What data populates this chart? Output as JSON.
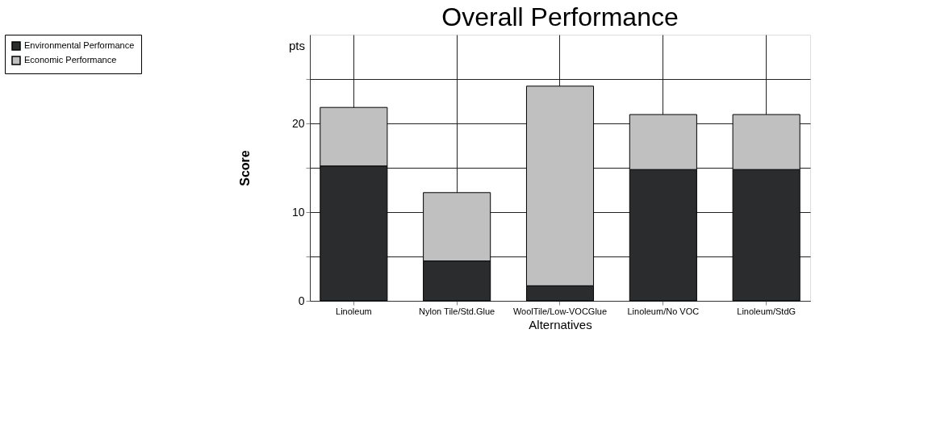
{
  "chart_data": {
    "type": "bar",
    "title": "Overall Performance",
    "xlabel": "Alternatives",
    "ylabel": "Score",
    "annotations": [
      "pts"
    ],
    "categories": [
      "Linoleum",
      "Nylon Tile/Std.Glue",
      "WoolTile/Low-VOCGlue",
      "Linoleum/No VOC",
      "Linoleum/StdG"
    ],
    "stacked": true,
    "series": [
      {
        "name": "Environmental Performance",
        "color": "#2a2c2e",
        "values": [
          15.2,
          4.5,
          1.7,
          14.8,
          14.8
        ]
      },
      {
        "name": "Economic Performance",
        "color": "#c0c0c0",
        "values": [
          6.6,
          7.7,
          22.5,
          6.2,
          6.2
        ]
      }
    ],
    "ylim": [
      0,
      30
    ],
    "yticks": [
      0,
      {
        "value": 5,
        "label": null
      },
      10,
      {
        "value": 15,
        "label": null
      },
      20,
      {
        "value": 25,
        "label": null
      }
    ],
    "grid": true,
    "legend": "left"
  }
}
